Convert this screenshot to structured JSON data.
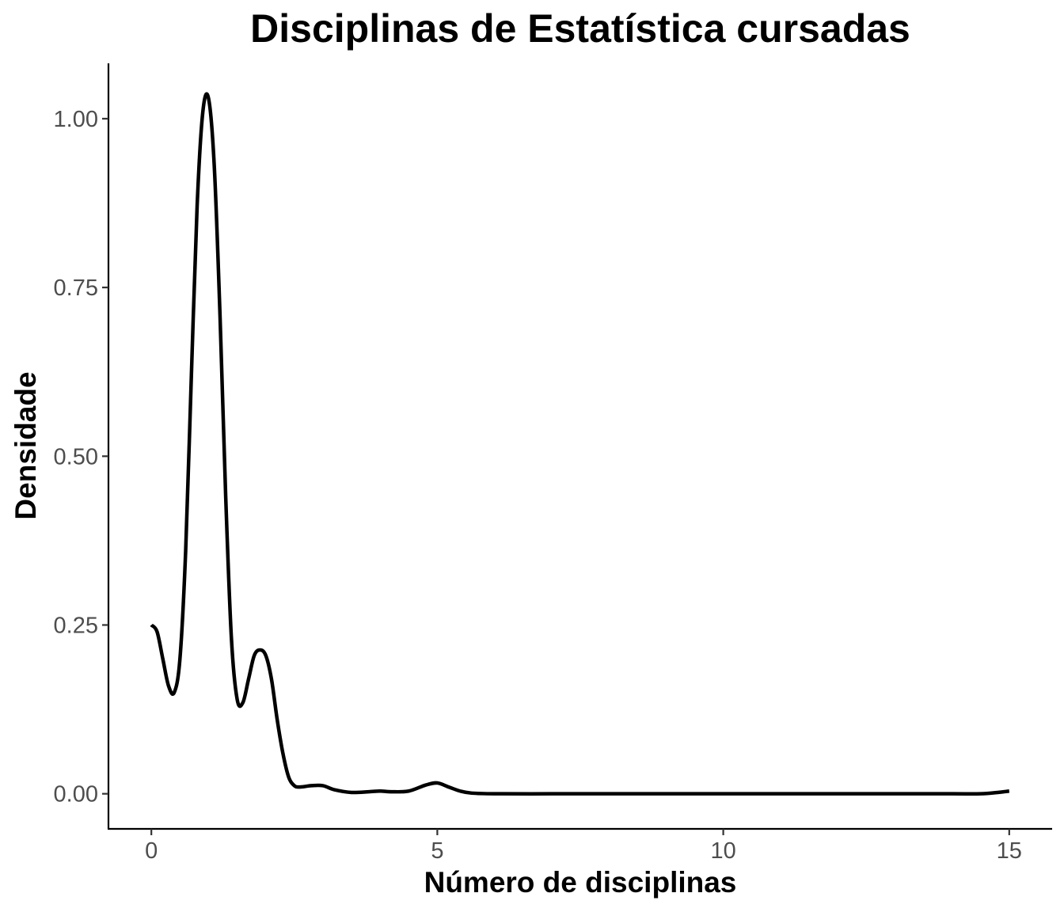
{
  "chart_data": {
    "type": "line",
    "title": "Disciplinas de Estatística cursadas",
    "xlabel": "Número de disciplinas",
    "ylabel": "Densidade",
    "xlim": [
      -0.75,
      15.75
    ],
    "ylim": [
      -0.052,
      1.082
    ],
    "x_ticks": [
      0,
      5,
      10,
      15
    ],
    "x_tick_labels": [
      "0",
      "5",
      "10",
      "15"
    ],
    "y_ticks": [
      0,
      0.25,
      0.5,
      0.75,
      1.0
    ],
    "y_tick_labels": [
      "0.00",
      "0.25",
      "0.50",
      "0.75",
      "1.00"
    ],
    "grid": false,
    "line_color": "#000000",
    "series": [
      {
        "x": [
          0,
          0.1,
          0.2,
          0.3,
          0.4,
          0.5,
          0.6,
          0.7,
          0.8,
          0.9,
          1.0,
          1.1,
          1.2,
          1.3,
          1.4,
          1.5,
          1.6,
          1.7,
          1.8,
          1.9,
          2.0,
          2.1,
          2.2,
          2.3,
          2.4,
          2.5,
          2.6,
          2.8,
          3.0,
          3.2,
          3.5,
          3.8,
          4.0,
          4.2,
          4.5,
          4.8,
          5.0,
          5.2,
          5.4,
          5.6,
          6.0,
          7.0,
          8.0,
          9.0,
          10.0,
          11.0,
          12.0,
          13.0,
          14.0,
          14.5,
          14.8,
          15.0
        ],
        "y": [
          0.25,
          0.24,
          0.2,
          0.16,
          0.15,
          0.2,
          0.36,
          0.62,
          0.87,
          1.01,
          1.03,
          0.93,
          0.71,
          0.44,
          0.23,
          0.14,
          0.135,
          0.17,
          0.205,
          0.213,
          0.205,
          0.17,
          0.11,
          0.06,
          0.025,
          0.012,
          0.01,
          0.012,
          0.012,
          0.006,
          0.002,
          0.003,
          0.004,
          0.003,
          0.004,
          0.013,
          0.016,
          0.01,
          0.004,
          0.001,
          0.0,
          0.0,
          0.0,
          0.0,
          0.0,
          0.0,
          0.0,
          0.0,
          0.0,
          0.0,
          0.002,
          0.004
        ]
      }
    ]
  }
}
